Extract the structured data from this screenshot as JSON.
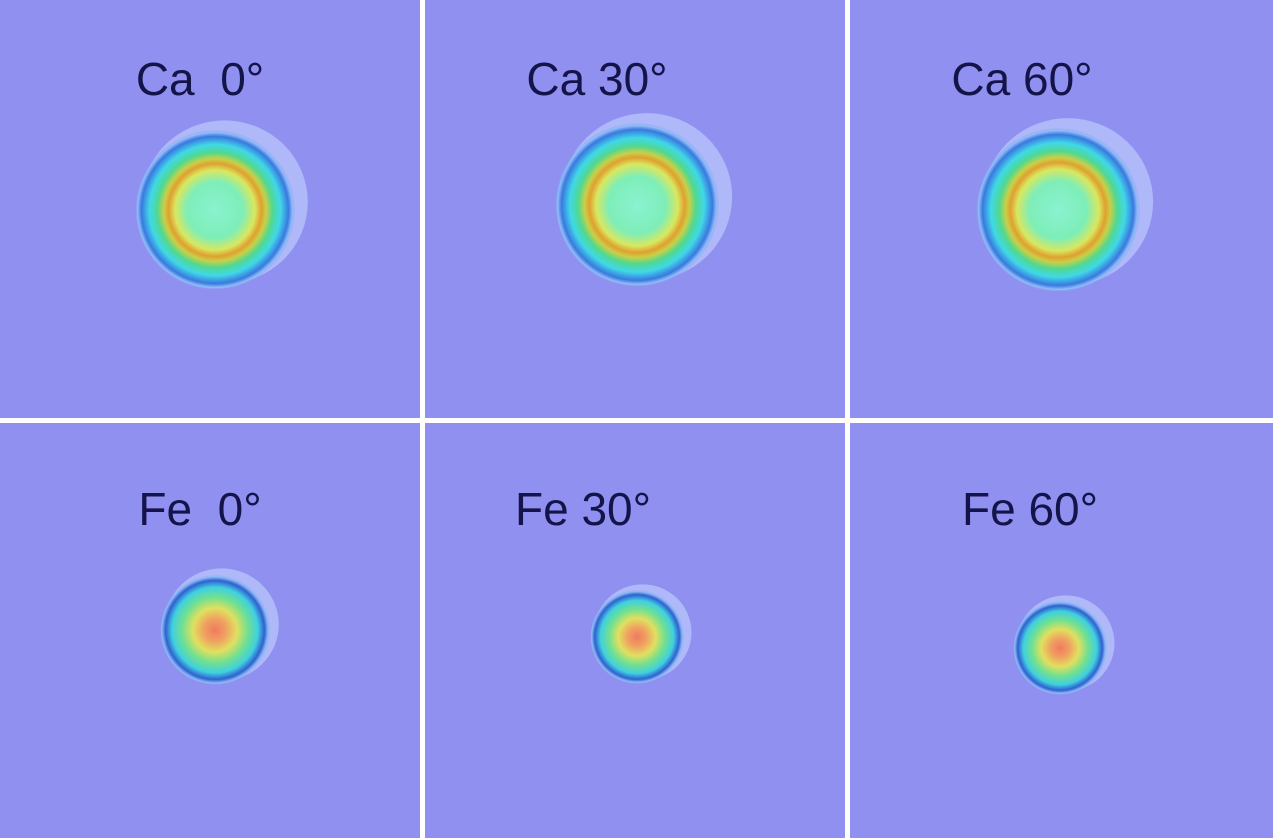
{
  "panels": [
    {
      "label": "Ca  0°"
    },
    {
      "label": "Ca 30°"
    },
    {
      "label": "Ca 60°"
    },
    {
      "label": "Fe  0°"
    },
    {
      "label": "Fe 30°"
    },
    {
      "label": "Fe 60°"
    }
  ]
}
